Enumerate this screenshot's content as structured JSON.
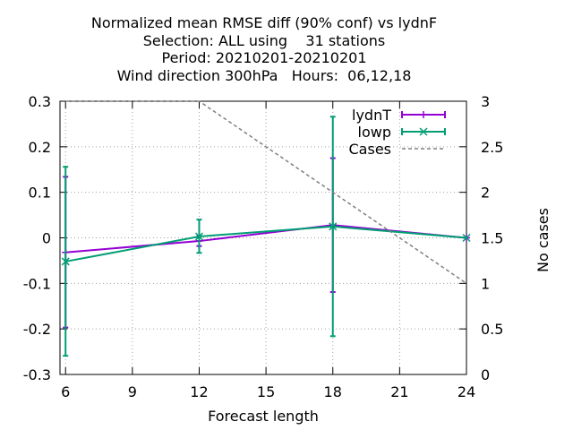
{
  "chart_data": {
    "type": "line",
    "title_lines": [
      "Normalized mean RMSE diff (90% conf) vs lydnF",
      "Selection: ALL using    31 stations",
      "Period: 20210201-20210201",
      "Wind direction 300hPa   Hours:  06,12,18"
    ],
    "xlabel": "Forecast length",
    "ylabel": "",
    "y2label": "No cases",
    "xlim": [
      5.75,
      24
    ],
    "ylim": [
      -0.3,
      0.3
    ],
    "y2lim": [
      0,
      3
    ],
    "xticks": [
      6,
      9,
      12,
      15,
      18,
      21,
      24
    ],
    "yticks": [
      -0.3,
      -0.2,
      -0.1,
      0,
      0.1,
      0.2,
      0.3
    ],
    "yticklabels": [
      "-0.3",
      "-0.2",
      "-0.1",
      "0",
      "0.1",
      "0.2",
      "0.3"
    ],
    "y2ticks": [
      0,
      0.5,
      1,
      1.5,
      2,
      2.5,
      3
    ],
    "y2ticklabels": [
      "0",
      "0.5",
      "1",
      "1.5",
      "2",
      "2.5",
      "3"
    ],
    "grid": true,
    "legend_position": "top-right",
    "series": [
      {
        "name": "lydnT",
        "color": "#9400d3",
        "marker": "plus",
        "axis": "y",
        "x": [
          6,
          12,
          18,
          24
        ],
        "y": [
          -0.032,
          -0.007,
          0.028,
          0.0
        ],
        "err_low": [
          -0.197,
          -0.018,
          -0.119,
          0.0
        ],
        "err_high": [
          0.134,
          0.004,
          0.175,
          0.0
        ]
      },
      {
        "name": "lowp",
        "color": "#009e73",
        "marker": "cross",
        "axis": "y",
        "x": [
          6,
          12,
          18,
          24
        ],
        "y": [
          -0.052,
          0.003,
          0.025,
          0.0
        ],
        "err_low": [
          -0.259,
          -0.033,
          -0.216,
          0.0
        ],
        "err_high": [
          0.156,
          0.04,
          0.266,
          0.0
        ]
      },
      {
        "name": "Cases",
        "color": "#808080",
        "marker": "none",
        "dashed": true,
        "axis": "y2",
        "x": [
          6,
          12,
          18,
          24
        ],
        "y": [
          3,
          3,
          2,
          1
        ]
      }
    ]
  }
}
